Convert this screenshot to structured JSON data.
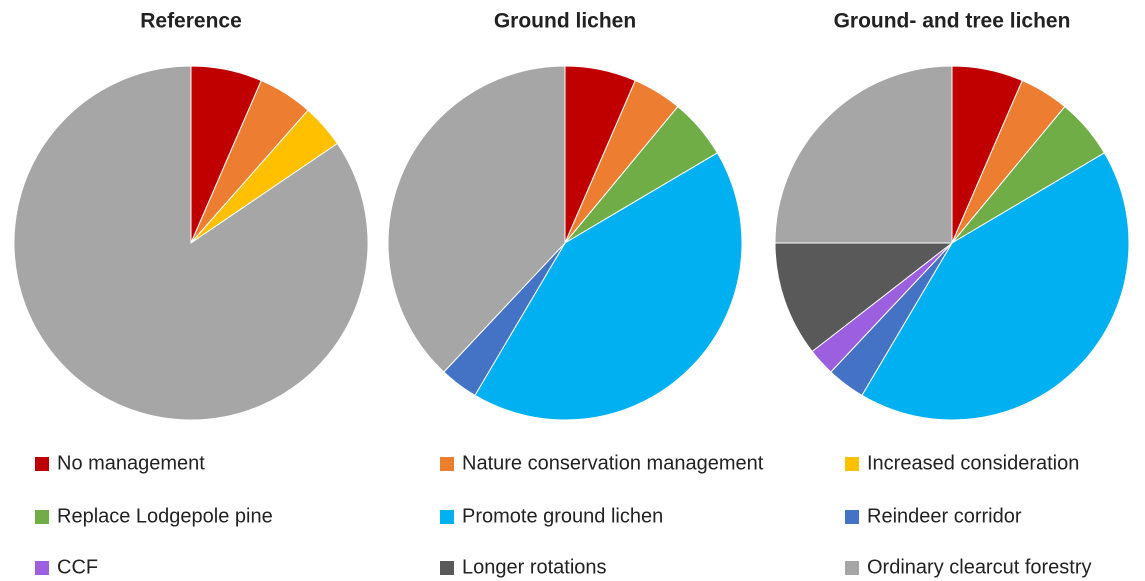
{
  "chart_data": [
    {
      "type": "pie",
      "title": "Reference",
      "categories": [
        "No management",
        "Nature conservation management",
        "Increased consideration",
        "Ordinary clearcut forestry"
      ],
      "values": [
        6.5,
        5,
        4,
        84.5
      ],
      "colors": [
        "#c00000",
        "#ed7d31",
        "#ffc000",
        "#a6a6a6"
      ]
    },
    {
      "type": "pie",
      "title": "Ground lichen",
      "categories": [
        "No management",
        "Nature conservation management",
        "Replace Lodgepole pine",
        "Promote ground lichen",
        "Reindeer corridor",
        "Ordinary clearcut forestry"
      ],
      "values": [
        6.5,
        4.5,
        5.5,
        42,
        3.5,
        38
      ],
      "colors": [
        "#c00000",
        "#ed7d31",
        "#70ad47",
        "#00b0f0",
        "#4472c4",
        "#a6a6a6"
      ]
    },
    {
      "type": "pie",
      "title": "Ground- and tree lichen",
      "categories": [
        "No management",
        "Nature conservation management",
        "Replace Lodgepole pine",
        "Promote ground lichen",
        "Reindeer corridor",
        "CCF",
        "Longer rotations",
        "Ordinary clearcut forestry"
      ],
      "values": [
        6.5,
        4.5,
        5.5,
        42,
        3.5,
        2.5,
        10.5,
        25
      ],
      "colors": [
        "#c00000",
        "#ed7d31",
        "#70ad47",
        "#00b0f0",
        "#4472c4",
        "#9b5fe0",
        "#595959",
        "#a6a6a6"
      ]
    }
  ],
  "legend": [
    {
      "name": "No management",
      "color": "#c00000"
    },
    {
      "name": "Nature conservation management",
      "color": "#ed7d31"
    },
    {
      "name": "Increased consideration",
      "color": "#ffc000"
    },
    {
      "name": "Replace Lodgepole pine",
      "color": "#70ad47"
    },
    {
      "name": "Promote ground lichen",
      "color": "#00b0f0"
    },
    {
      "name": "Reindeer corridor",
      "color": "#4472c4"
    },
    {
      "name": "CCF",
      "color": "#9b5fe0"
    },
    {
      "name": "Longer rotations",
      "color": "#595959"
    },
    {
      "name": "Ordinary clearcut forestry",
      "color": "#a6a6a6"
    }
  ]
}
